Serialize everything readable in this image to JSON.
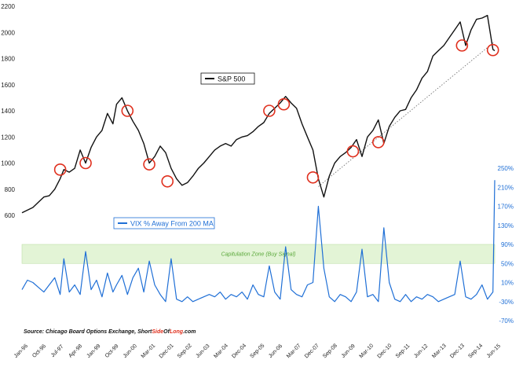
{
  "chart_data": {
    "type": "line",
    "x_ticks": [
      "Jan-96",
      "Oct-96",
      "Jul-97",
      "Apr-98",
      "Jan-99",
      "Oct-99",
      "Jun-00",
      "Mar-01",
      "Dec-01",
      "Sep-02",
      "Jun-03",
      "Mar-04",
      "Dec-04",
      "Sep-05",
      "Jun-06",
      "Mar-07",
      "Dec-07",
      "Sep-08",
      "Jun-09",
      "Mar-10",
      "Dec-10",
      "Sep-11",
      "Jun-12",
      "Mar-13",
      "Dec-13",
      "Sep-14",
      "Jun-15"
    ],
    "left_axis": {
      "ticks": [
        "600",
        "800",
        "1000",
        "1200",
        "1400",
        "1600",
        "1800",
        "2000",
        "2200"
      ],
      "range": [
        600,
        2200
      ]
    },
    "right_axis": {
      "ticks": [
        "-70%",
        "-30%",
        "10%",
        "50%",
        "90%",
        "130%",
        "170%",
        "210%",
        "250%"
      ],
      "range": [
        -70,
        250
      ]
    },
    "legend": [
      {
        "label": "S&P 500",
        "color": "#111111"
      },
      {
        "label": "VIX % Away From 200 MA",
        "color": "#1f6fd6"
      }
    ],
    "annotation": {
      "text": "Capitulation Zone (Buy Signal)",
      "range": [
        50,
        90
      ],
      "color": "#e3f4d6"
    },
    "source": "Source: Chicago Board Options Exchange, ",
    "source_brand_a": "Short",
    "source_brand_b": "Side",
    "source_brand_c": "Of",
    "source_brand_d": "Long",
    "source_brand_e": ".com",
    "series": [
      {
        "name": "S&P 500",
        "axis": "left",
        "color": "#111111",
        "x": [
          0.0,
          0.3,
          0.6,
          0.9,
          1.2,
          1.5,
          1.8,
          2.1,
          2.3,
          2.6,
          2.9,
          3.2,
          3.5,
          3.8,
          4.1,
          4.4,
          4.7,
          5.0,
          5.2,
          5.5,
          5.8,
          6.1,
          6.4,
          6.7,
          7.0,
          7.3,
          7.6,
          7.9,
          8.2,
          8.5,
          8.8,
          9.1,
          9.4,
          9.7,
          10.0,
          10.3,
          10.6,
          10.9,
          11.2,
          11.5,
          11.8,
          12.1,
          12.4,
          12.7,
          13.0,
          13.3,
          13.6,
          13.9,
          14.2,
          14.5,
          14.8,
          15.1,
          15.4,
          15.7,
          16.0,
          16.3,
          16.6,
          16.9,
          17.2,
          17.5,
          17.8,
          18.1,
          18.4,
          18.7,
          19.0,
          19.3,
          19.6,
          19.9,
          20.2,
          20.5,
          20.8,
          21.1,
          21.4,
          21.7,
          22.0,
          22.3,
          22.6,
          22.9,
          23.2,
          23.5,
          23.8,
          24.1,
          24.4,
          24.7,
          25.0,
          25.3,
          25.6,
          25.9,
          26.0
        ],
        "y": [
          620,
          640,
          660,
          700,
          740,
          750,
          800,
          880,
          950,
          930,
          960,
          1100,
          1000,
          1120,
          1200,
          1250,
          1380,
          1300,
          1450,
          1500,
          1400,
          1320,
          1250,
          1150,
          1000,
          1050,
          1130,
          1080,
          960,
          880,
          830,
          850,
          900,
          960,
          1000,
          1050,
          1100,
          1130,
          1150,
          1130,
          1180,
          1200,
          1210,
          1240,
          1280,
          1310,
          1380,
          1420,
          1460,
          1510,
          1460,
          1420,
          1300,
          1200,
          1100,
          880,
          740,
          900,
          1000,
          1050,
          1080,
          1120,
          1180,
          1050,
          1200,
          1250,
          1330,
          1150,
          1280,
          1350,
          1400,
          1410,
          1500,
          1560,
          1650,
          1700,
          1820,
          1860,
          1900,
          1960,
          2020,
          2080,
          1900,
          2020,
          2100,
          2110,
          2130,
          1870,
          1860
        ]
      },
      {
        "name": "VIX % Away From 200 MA",
        "axis": "right",
        "color": "#1f6fd6",
        "x": [
          0.0,
          0.3,
          0.6,
          0.9,
          1.2,
          1.5,
          1.8,
          2.1,
          2.3,
          2.6,
          2.9,
          3.2,
          3.5,
          3.8,
          4.1,
          4.4,
          4.7,
          5.0,
          5.2,
          5.5,
          5.8,
          6.1,
          6.4,
          6.7,
          7.0,
          7.3,
          7.6,
          7.9,
          8.2,
          8.5,
          8.8,
          9.1,
          9.4,
          9.7,
          10.0,
          10.3,
          10.6,
          10.9,
          11.2,
          11.5,
          11.8,
          12.1,
          12.4,
          12.7,
          13.0,
          13.3,
          13.6,
          13.9,
          14.2,
          14.5,
          14.8,
          15.1,
          15.4,
          15.7,
          16.0,
          16.3,
          16.6,
          16.9,
          17.2,
          17.5,
          17.8,
          18.1,
          18.4,
          18.7,
          19.0,
          19.3,
          19.6,
          19.9,
          20.2,
          20.5,
          20.8,
          21.1,
          21.4,
          21.7,
          22.0,
          22.3,
          22.6,
          22.9,
          23.2,
          23.5,
          23.8,
          24.1,
          24.4,
          24.7,
          25.0,
          25.3,
          25.6,
          25.9,
          26.0
        ],
        "y": [
          -5,
          15,
          10,
          0,
          -10,
          5,
          20,
          -15,
          60,
          -10,
          5,
          -15,
          75,
          -5,
          15,
          -20,
          30,
          -10,
          5,
          25,
          -15,
          20,
          40,
          -10,
          55,
          5,
          -15,
          -30,
          60,
          -25,
          -30,
          -20,
          -30,
          -25,
          -20,
          -15,
          -20,
          -10,
          -25,
          -15,
          -20,
          -10,
          -25,
          5,
          -15,
          -20,
          45,
          -10,
          -25,
          85,
          -5,
          -15,
          -20,
          5,
          10,
          170,
          40,
          -20,
          -30,
          -15,
          -20,
          -30,
          -10,
          80,
          -20,
          -15,
          -30,
          125,
          10,
          -25,
          -30,
          -15,
          -30,
          -20,
          -25,
          -15,
          -20,
          -30,
          -25,
          -20,
          -15,
          55,
          -20,
          -25,
          -15,
          5,
          -25,
          -10,
          225
        ]
      }
    ],
    "circles": [
      {
        "x": 2.1,
        "y": 950
      },
      {
        "x": 3.5,
        "y": 1000
      },
      {
        "x": 5.8,
        "y": 1400
      },
      {
        "x": 7.0,
        "y": 990
      },
      {
        "x": 8.0,
        "y": 860
      },
      {
        "x": 13.6,
        "y": 1400
      },
      {
        "x": 14.4,
        "y": 1450
      },
      {
        "x": 16.0,
        "y": 890
      },
      {
        "x": 18.2,
        "y": 1090
      },
      {
        "x": 19.6,
        "y": 1160
      },
      {
        "x": 24.2,
        "y": 1900
      },
      {
        "x": 25.9,
        "y": 1865
      }
    ],
    "trendline": {
      "from": {
        "x": 16.3,
        "y": 820
      },
      "to": {
        "x": 26.0,
        "y": 1930
      }
    }
  }
}
